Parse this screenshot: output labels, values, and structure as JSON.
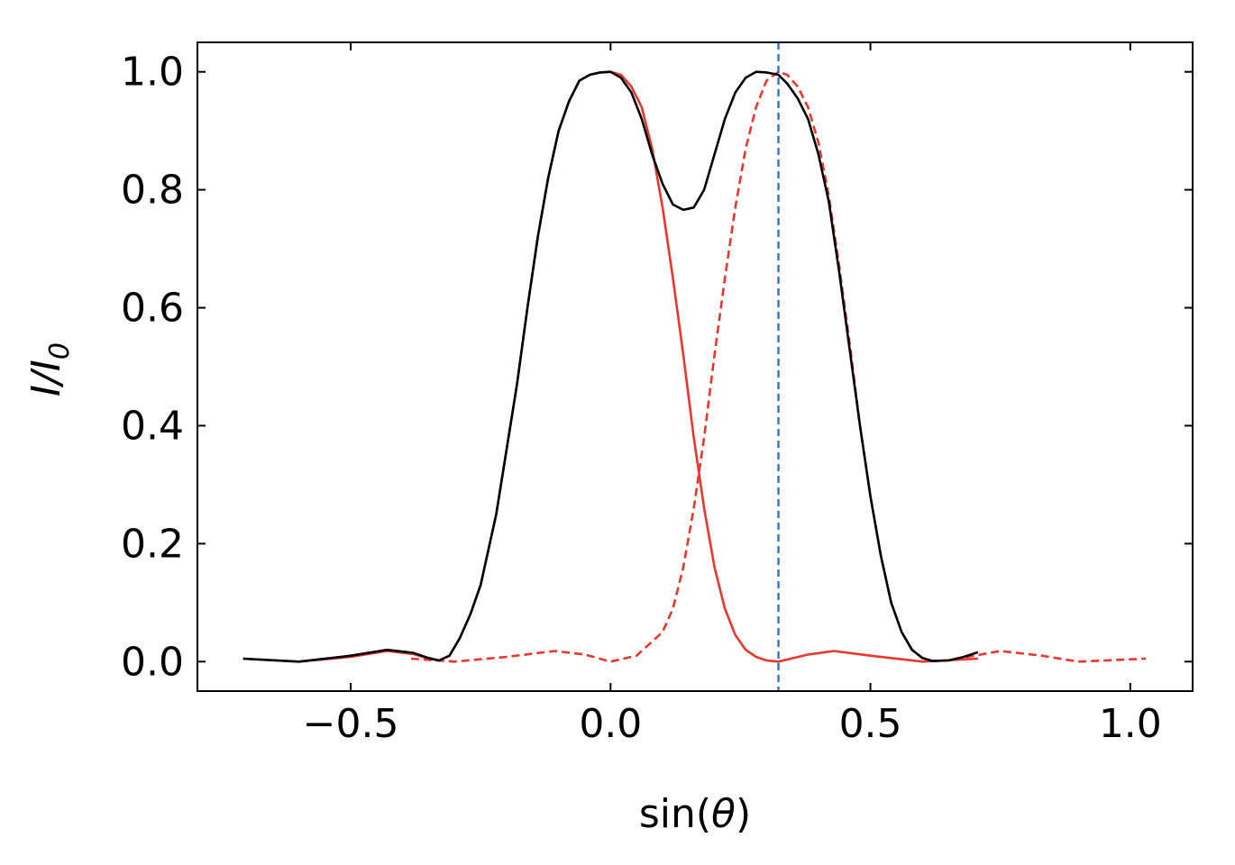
{
  "chart_data": {
    "type": "line",
    "xlabel": "sin(θ)",
    "ylabel": "I/I0",
    "ylabel_main": "I/I",
    "ylabel_sub": "0",
    "xlim": [
      -0.795,
      1.12
    ],
    "ylim": [
      -0.05,
      1.05
    ],
    "xticks": [
      -0.5,
      0.0,
      0.5,
      1.0
    ],
    "xtick_labels": [
      "−0.5",
      "0.0",
      "0.5",
      "1.0"
    ],
    "yticks": [
      0.0,
      0.2,
      0.4,
      0.6,
      0.8,
      1.0
    ],
    "ytick_labels": [
      "0.0",
      "0.2",
      "0.4",
      "0.6",
      "0.8",
      "1.0"
    ],
    "grid": false,
    "vline_x": 0.323,
    "series": [
      {
        "style": "solid",
        "color": "#e8372c",
        "x": [
          -0.707,
          -0.6,
          -0.5,
          -0.43,
          -0.38,
          -0.35,
          -0.33,
          -0.31,
          -0.29,
          -0.27,
          -0.25,
          -0.22,
          -0.2,
          -0.18,
          -0.16,
          -0.14,
          -0.12,
          -0.1,
          -0.08,
          -0.06,
          -0.04,
          -0.02,
          0.0,
          0.02,
          0.04,
          0.06,
          0.08,
          0.1,
          0.12,
          0.14,
          0.16,
          0.18,
          0.2,
          0.22,
          0.24,
          0.26,
          0.28,
          0.3,
          0.323,
          0.38,
          0.43,
          0.5,
          0.6,
          0.707
        ],
        "y": [
          0.005,
          0.0,
          0.008,
          0.018,
          0.013,
          0.005,
          0.002,
          0.01,
          0.04,
          0.08,
          0.13,
          0.25,
          0.36,
          0.47,
          0.6,
          0.72,
          0.82,
          0.9,
          0.95,
          0.985,
          0.995,
          0.999,
          1.0,
          0.995,
          0.975,
          0.94,
          0.87,
          0.77,
          0.65,
          0.52,
          0.38,
          0.26,
          0.16,
          0.09,
          0.045,
          0.02,
          0.008,
          0.002,
          0.0,
          0.012,
          0.018,
          0.01,
          0.0,
          0.005
        ]
      },
      {
        "style": "dashed",
        "color": "#e8372c",
        "x": [
          -0.384,
          -0.3,
          -0.2,
          -0.107,
          -0.05,
          0.0,
          0.05,
          0.1,
          0.12,
          0.14,
          0.16,
          0.18,
          0.2,
          0.22,
          0.24,
          0.26,
          0.28,
          0.3,
          0.323,
          0.34,
          0.36,
          0.38,
          0.4,
          0.42,
          0.44,
          0.46,
          0.48,
          0.5,
          0.52,
          0.54,
          0.56,
          0.58,
          0.6,
          0.62,
          0.65,
          0.7,
          0.75,
          0.83,
          0.9,
          1.03
        ],
        "y": [
          0.005,
          0.0,
          0.008,
          0.018,
          0.012,
          0.0,
          0.01,
          0.05,
          0.09,
          0.16,
          0.26,
          0.38,
          0.52,
          0.65,
          0.77,
          0.87,
          0.94,
          0.985,
          1.0,
          0.995,
          0.975,
          0.94,
          0.88,
          0.79,
          0.67,
          0.54,
          0.4,
          0.28,
          0.18,
          0.1,
          0.05,
          0.02,
          0.006,
          0.001,
          0.002,
          0.01,
          0.018,
          0.01,
          0.0,
          0.005
        ]
      },
      {
        "style": "solid",
        "color": "#000000",
        "x": [
          -0.707,
          -0.6,
          -0.5,
          -0.43,
          -0.38,
          -0.35,
          -0.33,
          -0.31,
          -0.29,
          -0.27,
          -0.25,
          -0.22,
          -0.2,
          -0.18,
          -0.16,
          -0.14,
          -0.12,
          -0.1,
          -0.08,
          -0.06,
          -0.04,
          -0.02,
          0.0,
          0.02,
          0.04,
          0.06,
          0.08,
          0.1,
          0.12,
          0.14,
          0.16,
          0.18,
          0.2,
          0.22,
          0.24,
          0.26,
          0.28,
          0.3,
          0.323,
          0.34,
          0.36,
          0.38,
          0.4,
          0.42,
          0.44,
          0.46,
          0.48,
          0.5,
          0.52,
          0.54,
          0.56,
          0.58,
          0.6,
          0.62,
          0.65,
          0.68,
          0.707
        ],
        "y": [
          0.005,
          0.0,
          0.01,
          0.02,
          0.015,
          0.006,
          0.002,
          0.01,
          0.04,
          0.08,
          0.13,
          0.25,
          0.36,
          0.47,
          0.6,
          0.72,
          0.82,
          0.9,
          0.95,
          0.985,
          0.995,
          0.999,
          1.0,
          0.99,
          0.965,
          0.92,
          0.86,
          0.81,
          0.775,
          0.766,
          0.77,
          0.8,
          0.86,
          0.92,
          0.965,
          0.99,
          1.0,
          0.999,
          0.995,
          0.98,
          0.955,
          0.92,
          0.86,
          0.78,
          0.66,
          0.53,
          0.4,
          0.28,
          0.18,
          0.1,
          0.05,
          0.02,
          0.006,
          0.001,
          0.002,
          0.008,
          0.016
        ]
      }
    ]
  }
}
